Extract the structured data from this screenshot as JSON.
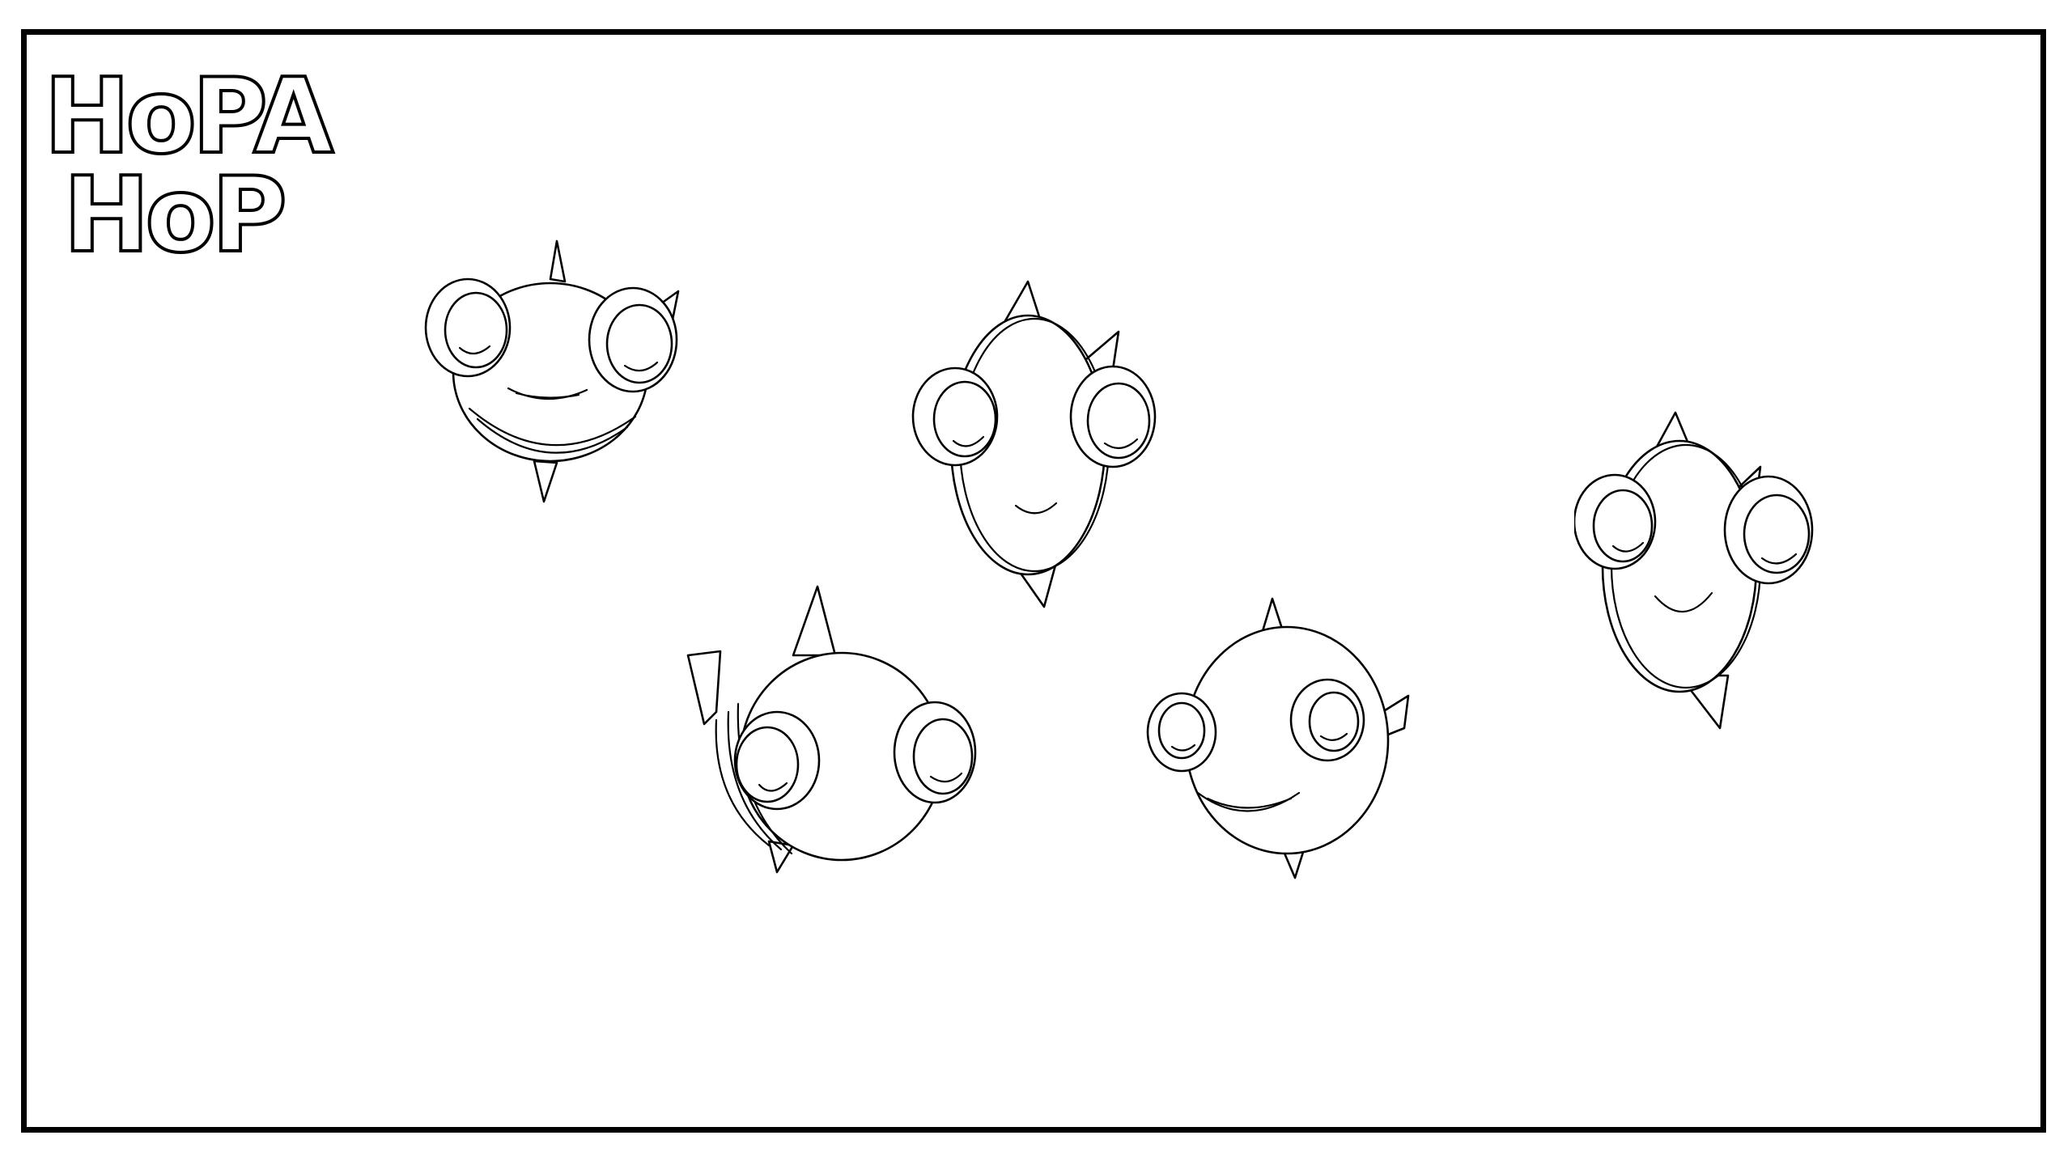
{
  "logo": {
    "line1": "HoPA",
    "line2": "HoP"
  },
  "colors": {
    "ink": "#000000",
    "paper": "#ffffff"
  },
  "figures": [
    {
      "name": "fish-top-left"
    },
    {
      "name": "fish-top-center"
    },
    {
      "name": "fish-right"
    },
    {
      "name": "fish-bottom-left"
    },
    {
      "name": "fish-bottom-center"
    }
  ]
}
